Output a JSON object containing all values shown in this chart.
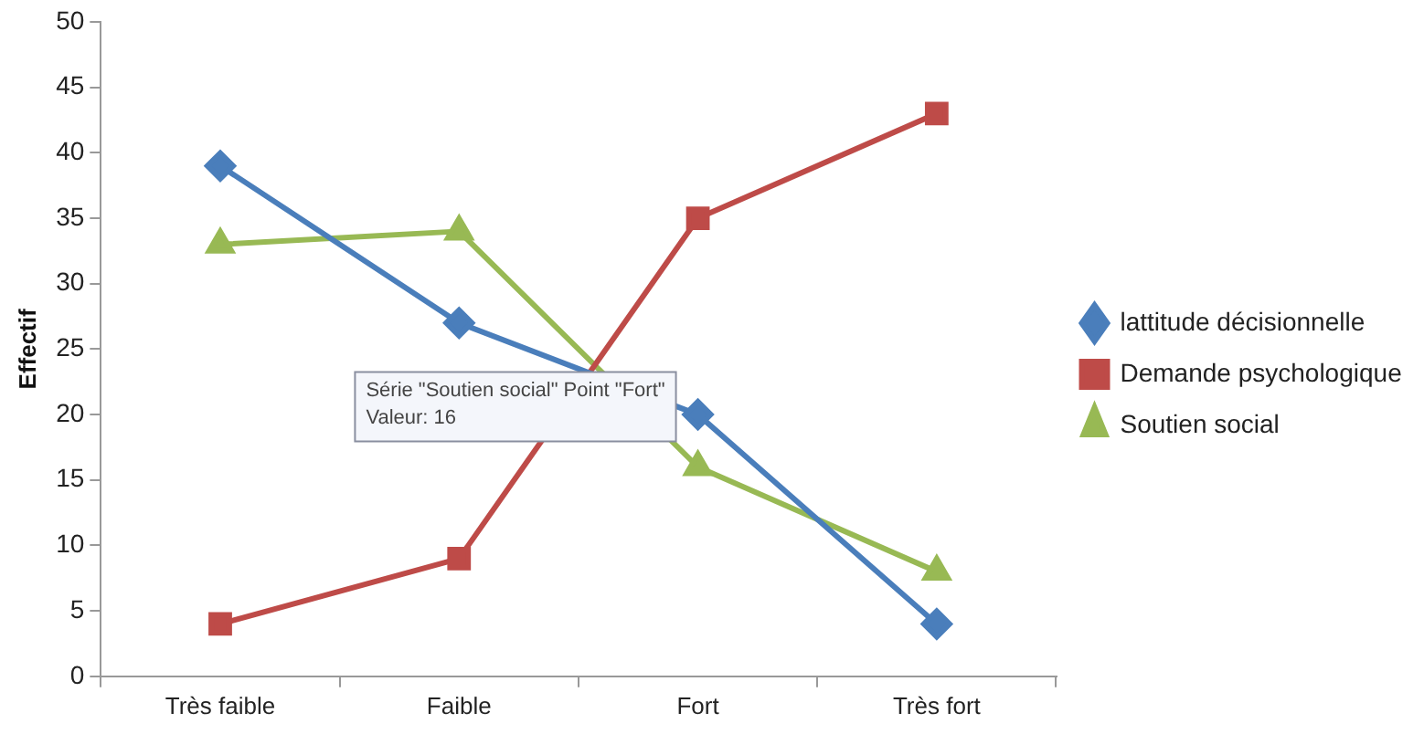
{
  "chart_data": {
    "type": "line",
    "ylabel": "Effectif",
    "categories": [
      "Très faible",
      "Faible",
      "Fort",
      "Très fort"
    ],
    "series": [
      {
        "name": "lattitude décisionnelle",
        "color": "#4a7ebb",
        "marker": "diamond",
        "values": [
          39,
          27,
          20,
          4
        ]
      },
      {
        "name": "Demande psychologique",
        "color": "#be4b48",
        "marker": "square",
        "values": [
          4,
          9,
          35,
          43
        ]
      },
      {
        "name": "Soutien social",
        "color": "#98b954",
        "marker": "triangle",
        "values": [
          33,
          34,
          16,
          8
        ]
      }
    ],
    "ylim": [
      0,
      50
    ],
    "yticks": [
      0,
      5,
      10,
      15,
      20,
      25,
      30,
      35,
      40,
      45,
      50
    ],
    "grid": false,
    "legend": "right",
    "annotations": [
      {
        "text": "Série \"Soutien social\" Point \"Fort\"\nValeur: 16",
        "x": "Fort",
        "y": 16
      }
    ]
  }
}
